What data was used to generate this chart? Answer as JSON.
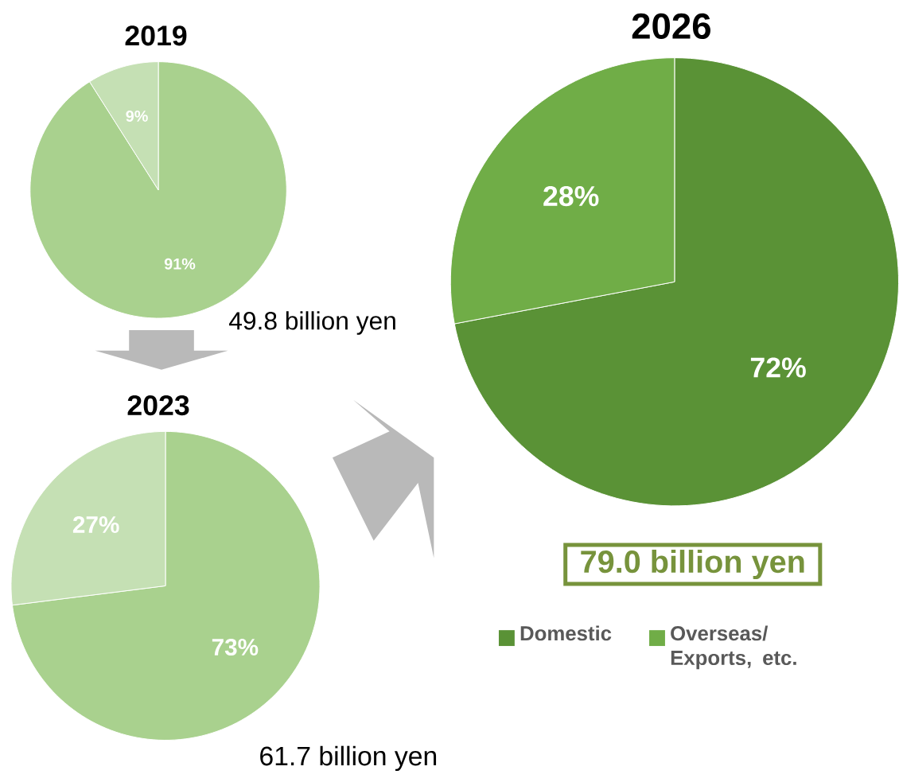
{
  "chart_data": [
    {
      "type": "pie",
      "title": "2019",
      "categories": [
        null,
        null
      ],
      "values": [
        91,
        9
      ],
      "colors": [
        "#a9d18e",
        "#c5e0b4"
      ],
      "value_labels": [
        "91%",
        "9%"
      ],
      "annotations": [
        "49.8 billion yen"
      ]
    },
    {
      "type": "pie",
      "title": "2023",
      "categories": [
        null,
        null
      ],
      "values": [
        73,
        27
      ],
      "colors": [
        "#a9d18e",
        "#c5e0b4"
      ],
      "value_labels": [
        "73%",
        "27%"
      ],
      "annotations": [
        "61.7 billion yen"
      ]
    },
    {
      "type": "pie",
      "title": "2026",
      "categories": [
        "Domestic",
        "Overseas/ Exports, etc."
      ],
      "values": [
        72,
        28
      ],
      "colors": [
        "#5a9236",
        "#70ad47"
      ],
      "value_labels": [
        "72%",
        "28%"
      ],
      "annotations": [
        "79.0 billion yen"
      ],
      "legend": "bottom"
    }
  ]
}
